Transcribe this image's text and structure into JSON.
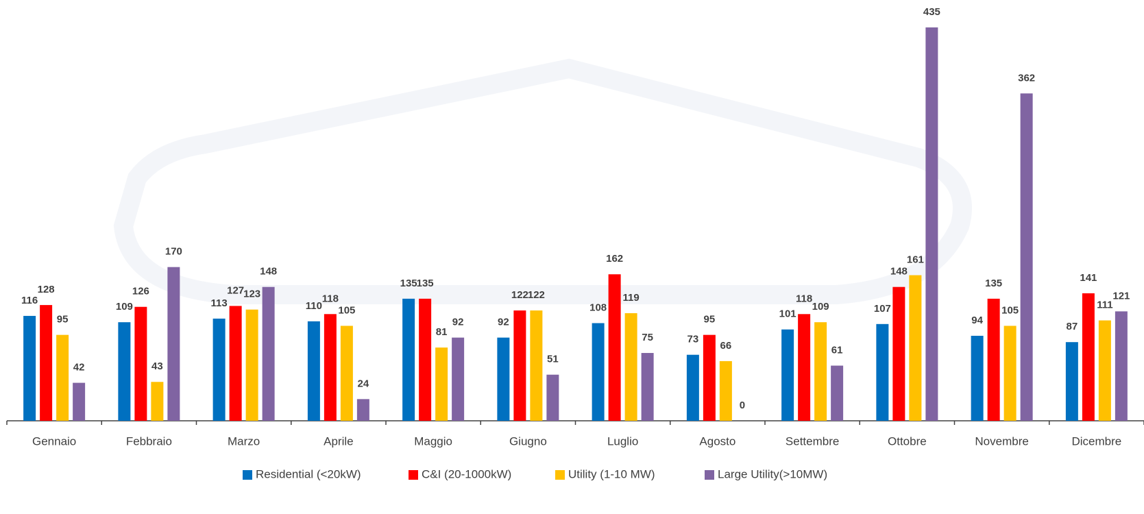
{
  "chart_data": {
    "type": "bar",
    "categories": [
      "Gennaio",
      "Febbraio",
      "Marzo",
      "Aprile",
      "Maggio",
      "Giugno",
      "Luglio",
      "Agosto",
      "Settembre",
      "Ottobre",
      "Novembre",
      "Dicembre"
    ],
    "series": [
      {
        "name": "Residential (<20kW)",
        "color": "#0070c0",
        "values": [
          116,
          109,
          113,
          110,
          135,
          92,
          108,
          73,
          101,
          107,
          94,
          87
        ]
      },
      {
        "name": "C&I (20-1000kW)",
        "color": "#ff0000",
        "values": [
          128,
          126,
          127,
          118,
          135,
          122,
          162,
          95,
          118,
          148,
          135,
          141
        ]
      },
      {
        "name": "Utility (1-10 MW)",
        "color": "#ffc000",
        "values": [
          95,
          43,
          123,
          105,
          81,
          122,
          119,
          66,
          109,
          161,
          105,
          111
        ]
      },
      {
        "name": "Large Utility(>10MW)",
        "color": "#8064a2",
        "values": [
          42,
          170,
          148,
          24,
          92,
          51,
          75,
          0,
          61,
          435,
          362,
          121
        ]
      }
    ],
    "legend": "bottom"
  }
}
